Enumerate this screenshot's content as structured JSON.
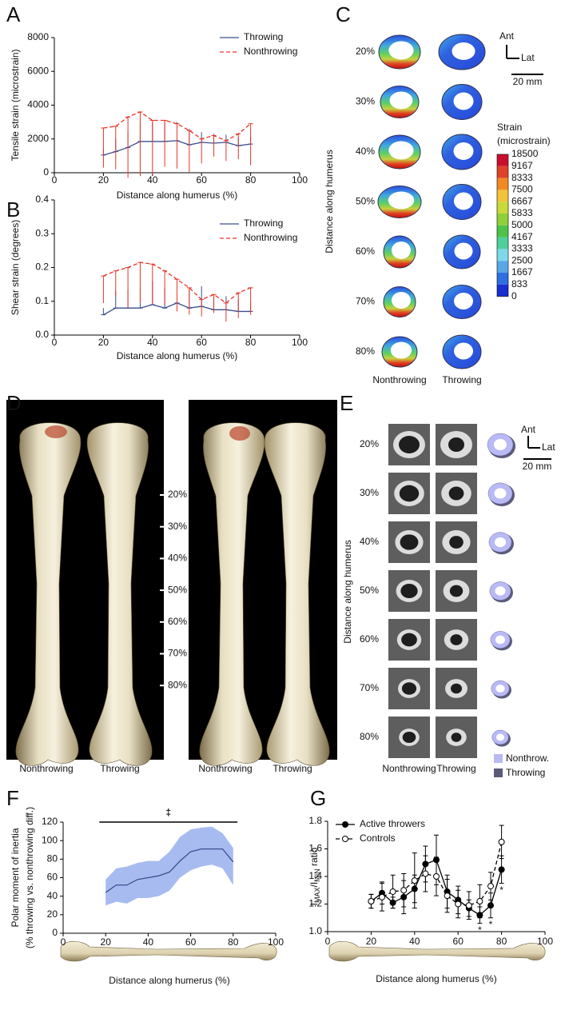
{
  "chart_data": [
    {
      "panel": "A",
      "type": "line",
      "y_label": "Tensile strain (microstrain)",
      "x_label": "Distance along humerus (%)",
      "xlim": [
        0,
        100
      ],
      "xticks": [
        0,
        20,
        40,
        60,
        80,
        100
      ],
      "ylim": [
        0,
        8000
      ],
      "yticks": [
        0,
        2000,
        4000,
        6000,
        8000
      ],
      "x": [
        20,
        25,
        30,
        35,
        40,
        45,
        50,
        55,
        60,
        65,
        70,
        75,
        80
      ],
      "legend": "top-right",
      "series": [
        {
          "name": "Throwing",
          "color": "#3a4f8f",
          "dash": false,
          "error_direction": "down",
          "values": [
            1050,
            1250,
            1500,
            1850,
            1850,
            1850,
            1900,
            1650,
            1800,
            1750,
            1800,
            1600,
            1700
          ],
          "errors": [
            350,
            750,
            950,
            1100,
            1150,
            1150,
            1100,
            950,
            600,
            550,
            450,
            500,
            450
          ]
        },
        {
          "name": "Nonthrowing",
          "color": "#e8352b",
          "dash": true,
          "error_direction": "up",
          "values": [
            2650,
            2750,
            3300,
            3600,
            3100,
            3100,
            2900,
            2500,
            2000,
            2200,
            1900,
            2300,
            2900
          ],
          "errors": [
            2350,
            2550,
            3600,
            3800,
            3200,
            2750,
            2650,
            2450,
            1450,
            1250,
            1200,
            1500,
            2450
          ]
        }
      ]
    },
    {
      "panel": "B",
      "type": "line",
      "y_label": "Shear strain (degrees)",
      "x_label": "Distance along humerus (%)",
      "xlim": [
        0,
        100
      ],
      "xticks": [
        0,
        20,
        40,
        60,
        80,
        100
      ],
      "ylim": [
        0,
        0.4
      ],
      "yticks": [
        {
          "value": 0,
          "label": "0.0"
        },
        0.1,
        0.2,
        0.3,
        0.4
      ],
      "x": [
        20,
        25,
        30,
        35,
        40,
        45,
        50,
        55,
        60,
        65,
        70,
        75,
        80
      ],
      "legend": "top-right",
      "series": [
        {
          "name": "Throwing",
          "color": "#3a4f8f",
          "dash": false,
          "error_direction": "down",
          "values": [
            0.06,
            0.08,
            0.08,
            0.08,
            0.09,
            0.08,
            0.095,
            0.08,
            0.085,
            0.075,
            0.075,
            0.07,
            0.07
          ],
          "errors": [
            0.02,
            0.05,
            0.055,
            0.06,
            0.07,
            0.06,
            0.07,
            0.055,
            0.06,
            0.04,
            0.04,
            0.035,
            0.025
          ]
        },
        {
          "name": "Nonthrowing",
          "color": "#e8352b",
          "dash": true,
          "error_direction": "up",
          "values": [
            0.175,
            0.19,
            0.2,
            0.215,
            0.21,
            0.19,
            0.165,
            0.14,
            0.105,
            0.12,
            0.095,
            0.125,
            0.14
          ],
          "errors": [
            0.08,
            0.075,
            0.12,
            0.12,
            0.12,
            0.1,
            0.095,
            0.08,
            0.05,
            0.055,
            0.055,
            0.075,
            0.08
          ]
        }
      ]
    },
    {
      "panel": "F",
      "type": "band-line",
      "y_label": [
        "Polar moment of inertia",
        "(% throwing vs. nonthrowing diff.)"
      ],
      "x_label": "Distance along humerus (%)",
      "xlim": [
        0,
        100
      ],
      "xticks": [
        0,
        20,
        40,
        60,
        80,
        100
      ],
      "ylim": [
        0,
        120
      ],
      "yticks": [
        0,
        20,
        40,
        60,
        80,
        100,
        120
      ],
      "x": [
        20,
        25,
        30,
        35,
        40,
        45,
        50,
        55,
        60,
        65,
        70,
        75,
        80
      ],
      "series": [
        {
          "color": "#3a4f8f",
          "dash": false,
          "values": [
            44,
            52,
            52,
            58,
            60,
            62,
            66,
            78,
            88,
            91,
            91,
            91,
            77
          ]
        }
      ],
      "band": {
        "color": "#a8bbf0",
        "lower": [
          30,
          34,
          32,
          38,
          38,
          40,
          46,
          60,
          68,
          72,
          74,
          70,
          52
        ],
        "upper": [
          58,
          70,
          72,
          76,
          78,
          78,
          88,
          104,
          112,
          114,
          115,
          108,
          92
        ]
      },
      "annotation": {
        "text": "‡",
        "from": 17,
        "to": 82
      }
    },
    {
      "panel": "G",
      "type": "line",
      "y_label_parts": [
        "I",
        "MAX",
        "/I",
        "MIN",
        " ratio"
      ],
      "x_label": "Distance along humerus (%)",
      "xlim": [
        0,
        100
      ],
      "xticks": [
        0,
        20,
        40,
        60,
        80,
        100
      ],
      "ylim": [
        1,
        1.8
      ],
      "yticks": [
        {
          "value": 1,
          "label": "1.0"
        },
        1.2,
        1.4,
        1.6,
        1.8
      ],
      "x": [
        20,
        25,
        30,
        35,
        40,
        45,
        50,
        55,
        60,
        65,
        70,
        75,
        80
      ],
      "legend": "top-left",
      "series": [
        {
          "name": "Active throwers",
          "color": "#000000",
          "dash": false,
          "marker": "filled",
          "error_direction": "both",
          "values": [
            1.22,
            1.28,
            1.21,
            1.25,
            1.31,
            1.49,
            1.52,
            1.29,
            1.23,
            1.17,
            1.12,
            1.19,
            1.45
          ],
          "errors": [
            0.05,
            0.08,
            0.04,
            0.12,
            0.1,
            0.13,
            0.18,
            0.12,
            0.1,
            0.06,
            0.06,
            0.09,
            0.1
          ]
        },
        {
          "name": "Controls",
          "color": "#000000",
          "dash": true,
          "marker": "open",
          "error_direction": "both",
          "values": [
            1.22,
            1.25,
            1.29,
            1.3,
            1.37,
            1.42,
            1.4,
            1.26,
            1.2,
            1.19,
            1.22,
            1.33,
            1.65
          ],
          "errors": [
            0.05,
            0.1,
            0.12,
            0.12,
            0.2,
            0.13,
            0.14,
            0.12,
            0.1,
            0.1,
            0.12,
            0.1,
            0.12
          ]
        }
      ],
      "annotations": [
        {
          "text": "*",
          "x": 70
        },
        {
          "text": "*",
          "x": 75
        },
        {
          "text": "*",
          "x": 80
        }
      ]
    }
  ],
  "panel_c": {
    "panel": "C",
    "rows": [
      "20%",
      "30%",
      "40%",
      "50%",
      "60%",
      "70%",
      "80%"
    ],
    "columns": [
      "Nonthrowing",
      "Throwing"
    ],
    "axis_label": "Distance along humerus",
    "ant": "Ant",
    "lat": "Lat",
    "scale": "20 mm",
    "colorbar": {
      "title": "Strain",
      "unit": "(microstrain)",
      "labels": [
        18500,
        9167,
        8333,
        7500,
        6667,
        5833,
        5000,
        4167,
        3333,
        2500,
        1667,
        833,
        0
      ],
      "colors": [
        "#c8102e",
        "#e0412a",
        "#f08a24",
        "#f2c23a",
        "#c9d93a",
        "#8fd03a",
        "#4fc24a",
        "#4fcf9a",
        "#7fd8e8",
        "#5aa7e8",
        "#2f6fe0",
        "#1a2fd0"
      ]
    }
  },
  "panel_d": {
    "panel": "D",
    "rows": [
      "20%",
      "30%",
      "40%",
      "50%",
      "60%",
      "70%",
      "80%"
    ],
    "columns": [
      "Nonthrowing",
      "Throwing",
      "Nonthrowing",
      "Throwing"
    ]
  },
  "panel_e": {
    "panel": "E",
    "rows": [
      "20%",
      "30%",
      "40%",
      "50%",
      "60%",
      "70%",
      "80%"
    ],
    "columns": [
      "Nonthrowing",
      "Throwing"
    ],
    "axis_label": "Distance along humerus",
    "ant": "Ant",
    "lat": "Lat",
    "scale": "20 mm",
    "legend": [
      "Nonthrow.",
      "Throwing"
    ]
  }
}
